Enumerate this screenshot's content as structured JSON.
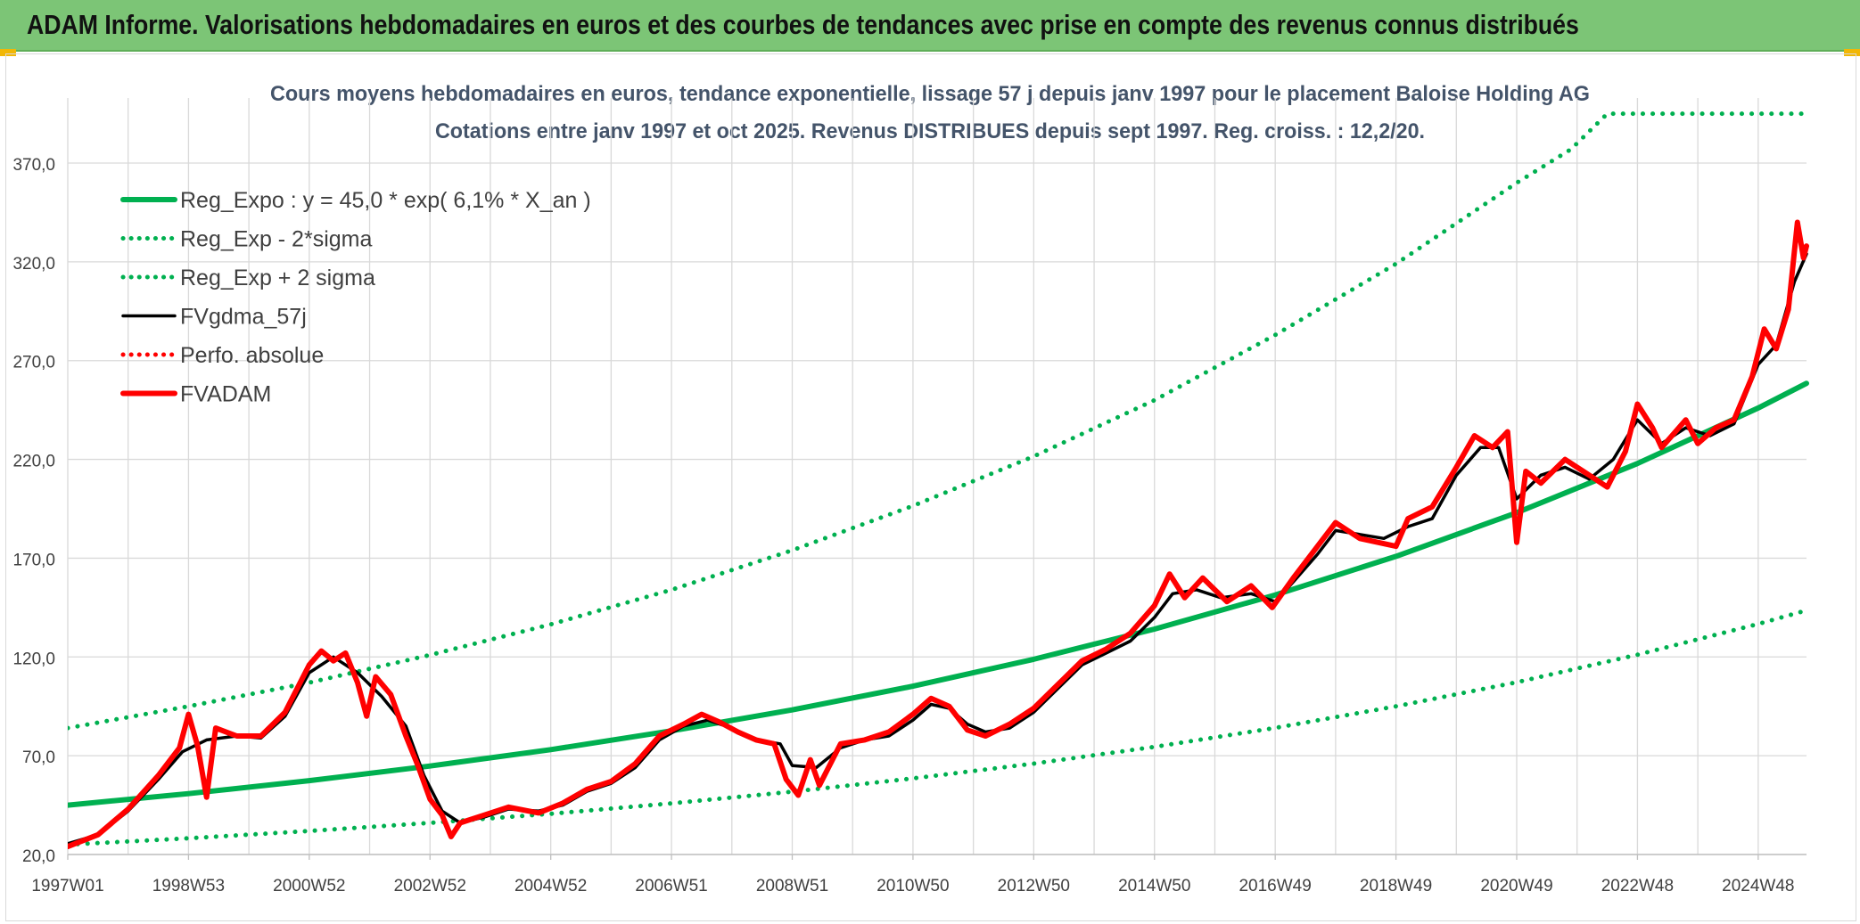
{
  "banner": {
    "title": "ADAM Informe. Valorisations hebdomadaires en euros et des courbes de tendances avec prise en compte des revenus connus distribués"
  },
  "chart_data": {
    "type": "line",
    "title": "Cours moyens hebdomadaires en euros, tendance exponentielle, lissage 57 j depuis janv 1997 pour le placement Baloise Holding AG",
    "subtitle": "Cotations entre janv 1997 et oct 2025. Revenus DISTRIBUES depuis sept 1997. Reg. croiss. : 12,2/20.",
    "xlabel": "",
    "ylabel": "",
    "ylim": [
      20,
      370
    ],
    "xlim": [
      1997.0,
      2025.8
    ],
    "y_ticks": [
      "20,0",
      "70,0",
      "120,0",
      "170,0",
      "220,0",
      "270,0",
      "320,0",
      "370,0"
    ],
    "y_tick_values": [
      20,
      70,
      120,
      170,
      220,
      270,
      320,
      370
    ],
    "x_ticks": [
      "1997W01",
      "1998W53",
      "2000W52",
      "2002W52",
      "2004W52",
      "2006W51",
      "2008W51",
      "2010W50",
      "2012W50",
      "2014W50",
      "2016W49",
      "2018W49",
      "2020W49",
      "2022W48",
      "2024W48"
    ],
    "x_tick_values": [
      1997.0,
      1999.0,
      2001.0,
      2003.0,
      2005.0,
      2007.0,
      2009.0,
      2011.0,
      2013.0,
      2015.0,
      2017.0,
      2019.0,
      2021.0,
      2023.0,
      2025.0
    ],
    "grid": true,
    "legend_position": "top-left",
    "series": [
      {
        "name": "Reg_Expo : y = 45,0 * exp( 6,1% *  X_an )",
        "color": "#00b050",
        "style": "solid-thick",
        "points": [
          [
            1997.0,
            45.0
          ],
          [
            1999.0,
            50.8
          ],
          [
            2001.0,
            57.4
          ],
          [
            2003.0,
            64.8
          ],
          [
            2005.0,
            73.1
          ],
          [
            2007.0,
            82.6
          ],
          [
            2009.0,
            93.2
          ],
          [
            2011.0,
            105.2
          ],
          [
            2013.0,
            118.8
          ],
          [
            2015.0,
            134.1
          ],
          [
            2017.0,
            151.4
          ],
          [
            2019.0,
            170.9
          ],
          [
            2021.0,
            193.0
          ],
          [
            2023.0,
            217.9
          ],
          [
            2025.0,
            246.0
          ],
          [
            2025.8,
            258.5
          ]
        ]
      },
      {
        "name": "Reg_Exp - 2*sigma",
        "color": "#00b050",
        "style": "dotted",
        "points": [
          [
            1997.0,
            25.0
          ],
          [
            1999.0,
            28.2
          ],
          [
            2001.0,
            31.9
          ],
          [
            2003.0,
            36.0
          ],
          [
            2005.0,
            40.6
          ],
          [
            2007.0,
            45.9
          ],
          [
            2009.0,
            51.8
          ],
          [
            2011.0,
            58.5
          ],
          [
            2013.0,
            66.0
          ],
          [
            2015.0,
            74.5
          ],
          [
            2017.0,
            84.1
          ],
          [
            2019.0,
            95.0
          ],
          [
            2021.0,
            107.2
          ],
          [
            2023.0,
            121.1
          ],
          [
            2025.0,
            136.7
          ],
          [
            2025.8,
            143.6
          ]
        ]
      },
      {
        "name": "Reg_Exp + 2 sigma",
        "color": "#00b050",
        "style": "dotted",
        "points": [
          [
            1997.0,
            84.0
          ],
          [
            1999.0,
            95.0
          ],
          [
            2001.0,
            107.0
          ],
          [
            2003.0,
            121.0
          ],
          [
            2005.0,
            136.5
          ],
          [
            2007.0,
            154.0
          ],
          [
            2009.0,
            174.0
          ],
          [
            2011.0,
            196.5
          ],
          [
            2013.0,
            221.5
          ],
          [
            2015.0,
            250.0
          ],
          [
            2017.0,
            283.0
          ],
          [
            2019.0,
            319.0
          ],
          [
            2021.0,
            360.0
          ],
          [
            2021.9,
            377.0
          ],
          [
            2022.5,
            395.0
          ],
          [
            2025.8,
            395.0
          ]
        ]
      },
      {
        "name": "FVgdma_57j",
        "color": "#000000",
        "style": "solid",
        "points": [
          [
            1997.0,
            25.5
          ],
          [
            1997.5,
            30.0
          ],
          [
            1998.0,
            42.0
          ],
          [
            1998.5,
            58.0
          ],
          [
            1998.9,
            72.0
          ],
          [
            1999.3,
            78.0
          ],
          [
            1999.8,
            80.0
          ],
          [
            2000.2,
            79.0
          ],
          [
            2000.6,
            90.0
          ],
          [
            2001.0,
            112.0
          ],
          [
            2001.4,
            120.0
          ],
          [
            2001.8,
            112.0
          ],
          [
            2002.2,
            100.0
          ],
          [
            2002.6,
            85.0
          ],
          [
            2002.9,
            60.0
          ],
          [
            2003.2,
            42.0
          ],
          [
            2003.5,
            36.0
          ],
          [
            2003.9,
            39.0
          ],
          [
            2004.3,
            43.0
          ],
          [
            2004.8,
            42.0
          ],
          [
            2005.2,
            45.0
          ],
          [
            2005.6,
            52.0
          ],
          [
            2006.0,
            56.0
          ],
          [
            2006.4,
            64.0
          ],
          [
            2006.8,
            78.0
          ],
          [
            2007.2,
            85.0
          ],
          [
            2007.6,
            88.0
          ],
          [
            2008.0,
            84.0
          ],
          [
            2008.4,
            78.0
          ],
          [
            2008.8,
            76.0
          ],
          [
            2009.0,
            65.0
          ],
          [
            2009.4,
            64.0
          ],
          [
            2009.8,
            74.0
          ],
          [
            2010.2,
            78.0
          ],
          [
            2010.6,
            80.0
          ],
          [
            2011.0,
            88.0
          ],
          [
            2011.3,
            96.0
          ],
          [
            2011.6,
            94.0
          ],
          [
            2011.9,
            86.0
          ],
          [
            2012.2,
            82.0
          ],
          [
            2012.6,
            84.0
          ],
          [
            2013.0,
            92.0
          ],
          [
            2013.4,
            104.0
          ],
          [
            2013.8,
            116.0
          ],
          [
            2014.2,
            122.0
          ],
          [
            2014.6,
            128.0
          ],
          [
            2015.0,
            140.0
          ],
          [
            2015.3,
            152.0
          ],
          [
            2015.7,
            154.0
          ],
          [
            2016.1,
            150.0
          ],
          [
            2016.6,
            152.0
          ],
          [
            2017.0,
            148.0
          ],
          [
            2017.3,
            158.0
          ],
          [
            2017.7,
            172.0
          ],
          [
            2018.0,
            184.0
          ],
          [
            2018.4,
            182.0
          ],
          [
            2018.8,
            180.0
          ],
          [
            2019.2,
            186.0
          ],
          [
            2019.6,
            190.0
          ],
          [
            2020.0,
            212.0
          ],
          [
            2020.4,
            226.0
          ],
          [
            2020.7,
            226.0
          ],
          [
            2021.0,
            200.0
          ],
          [
            2021.4,
            212.0
          ],
          [
            2021.8,
            216.0
          ],
          [
            2022.2,
            210.0
          ],
          [
            2022.6,
            220.0
          ],
          [
            2023.0,
            240.0
          ],
          [
            2023.4,
            228.0
          ],
          [
            2023.8,
            236.0
          ],
          [
            2024.2,
            232.0
          ],
          [
            2024.6,
            238.0
          ],
          [
            2025.0,
            268.0
          ],
          [
            2025.3,
            278.0
          ],
          [
            2025.6,
            310.0
          ],
          [
            2025.8,
            324.0
          ]
        ]
      },
      {
        "name": "Perfo. absolue",
        "color": "#ff0000",
        "style": "dotted",
        "points": []
      },
      {
        "name": "FVADAM",
        "color": "#ff0000",
        "style": "solid-thick",
        "points": [
          [
            1997.0,
            24.0
          ],
          [
            1997.5,
            30.0
          ],
          [
            1998.0,
            43.0
          ],
          [
            1998.5,
            60.0
          ],
          [
            1998.85,
            74.0
          ],
          [
            1999.0,
            91.0
          ],
          [
            1999.15,
            75.0
          ],
          [
            1999.3,
            49.0
          ],
          [
            1999.45,
            84.0
          ],
          [
            1999.8,
            80.0
          ],
          [
            2000.2,
            80.0
          ],
          [
            2000.6,
            92.0
          ],
          [
            2001.0,
            116.0
          ],
          [
            2001.2,
            123.0
          ],
          [
            2001.4,
            118.0
          ],
          [
            2001.6,
            122.0
          ],
          [
            2001.8,
            107.0
          ],
          [
            2001.95,
            90.0
          ],
          [
            2002.1,
            110.0
          ],
          [
            2002.35,
            101.0
          ],
          [
            2002.6,
            80.0
          ],
          [
            2002.8,
            65.0
          ],
          [
            2003.0,
            48.0
          ],
          [
            2003.2,
            40.0
          ],
          [
            2003.35,
            29.0
          ],
          [
            2003.5,
            36.0
          ],
          [
            2003.9,
            40.0
          ],
          [
            2004.3,
            44.0
          ],
          [
            2004.8,
            41.0
          ],
          [
            2005.2,
            46.0
          ],
          [
            2005.6,
            53.0
          ],
          [
            2006.0,
            57.0
          ],
          [
            2006.4,
            66.0
          ],
          [
            2006.8,
            80.0
          ],
          [
            2007.2,
            86.0
          ],
          [
            2007.5,
            91.0
          ],
          [
            2007.8,
            87.0
          ],
          [
            2008.1,
            82.0
          ],
          [
            2008.4,
            78.0
          ],
          [
            2008.7,
            76.0
          ],
          [
            2008.9,
            58.0
          ],
          [
            2009.1,
            50.0
          ],
          [
            2009.3,
            68.0
          ],
          [
            2009.45,
            55.0
          ],
          [
            2009.8,
            76.0
          ],
          [
            2010.2,
            78.0
          ],
          [
            2010.6,
            82.0
          ],
          [
            2011.0,
            91.0
          ],
          [
            2011.3,
            99.0
          ],
          [
            2011.6,
            95.0
          ],
          [
            2011.9,
            83.0
          ],
          [
            2012.2,
            80.0
          ],
          [
            2012.6,
            86.0
          ],
          [
            2013.0,
            94.0
          ],
          [
            2013.4,
            106.0
          ],
          [
            2013.8,
            118.0
          ],
          [
            2014.2,
            124.0
          ],
          [
            2014.6,
            132.0
          ],
          [
            2015.0,
            146.0
          ],
          [
            2015.25,
            162.0
          ],
          [
            2015.5,
            150.0
          ],
          [
            2015.8,
            160.0
          ],
          [
            2016.2,
            148.0
          ],
          [
            2016.6,
            156.0
          ],
          [
            2016.95,
            145.0
          ],
          [
            2017.3,
            160.0
          ],
          [
            2017.7,
            176.0
          ],
          [
            2018.0,
            188.0
          ],
          [
            2018.4,
            180.0
          ],
          [
            2018.7,
            178.0
          ],
          [
            2019.0,
            176.0
          ],
          [
            2019.2,
            190.0
          ],
          [
            2019.6,
            196.0
          ],
          [
            2020.0,
            216.0
          ],
          [
            2020.3,
            232.0
          ],
          [
            2020.6,
            226.0
          ],
          [
            2020.85,
            234.0
          ],
          [
            2021.0,
            178.0
          ],
          [
            2021.15,
            214.0
          ],
          [
            2021.4,
            208.0
          ],
          [
            2021.8,
            220.0
          ],
          [
            2022.2,
            212.0
          ],
          [
            2022.5,
            206.0
          ],
          [
            2022.8,
            224.0
          ],
          [
            2023.0,
            248.0
          ],
          [
            2023.25,
            236.0
          ],
          [
            2023.4,
            226.0
          ],
          [
            2023.8,
            240.0
          ],
          [
            2024.0,
            228.0
          ],
          [
            2024.3,
            236.0
          ],
          [
            2024.6,
            240.0
          ],
          [
            2024.9,
            262.0
          ],
          [
            2025.1,
            286.0
          ],
          [
            2025.3,
            276.0
          ],
          [
            2025.5,
            296.0
          ],
          [
            2025.65,
            340.0
          ],
          [
            2025.75,
            322.0
          ],
          [
            2025.8,
            328.0
          ]
        ]
      }
    ]
  },
  "colors": {
    "banner": "#7cc576",
    "trend": "#00b050",
    "smoothed": "#000000",
    "price": "#ff0000",
    "title_text": "#44546a",
    "grid": "#d9d9d9"
  }
}
